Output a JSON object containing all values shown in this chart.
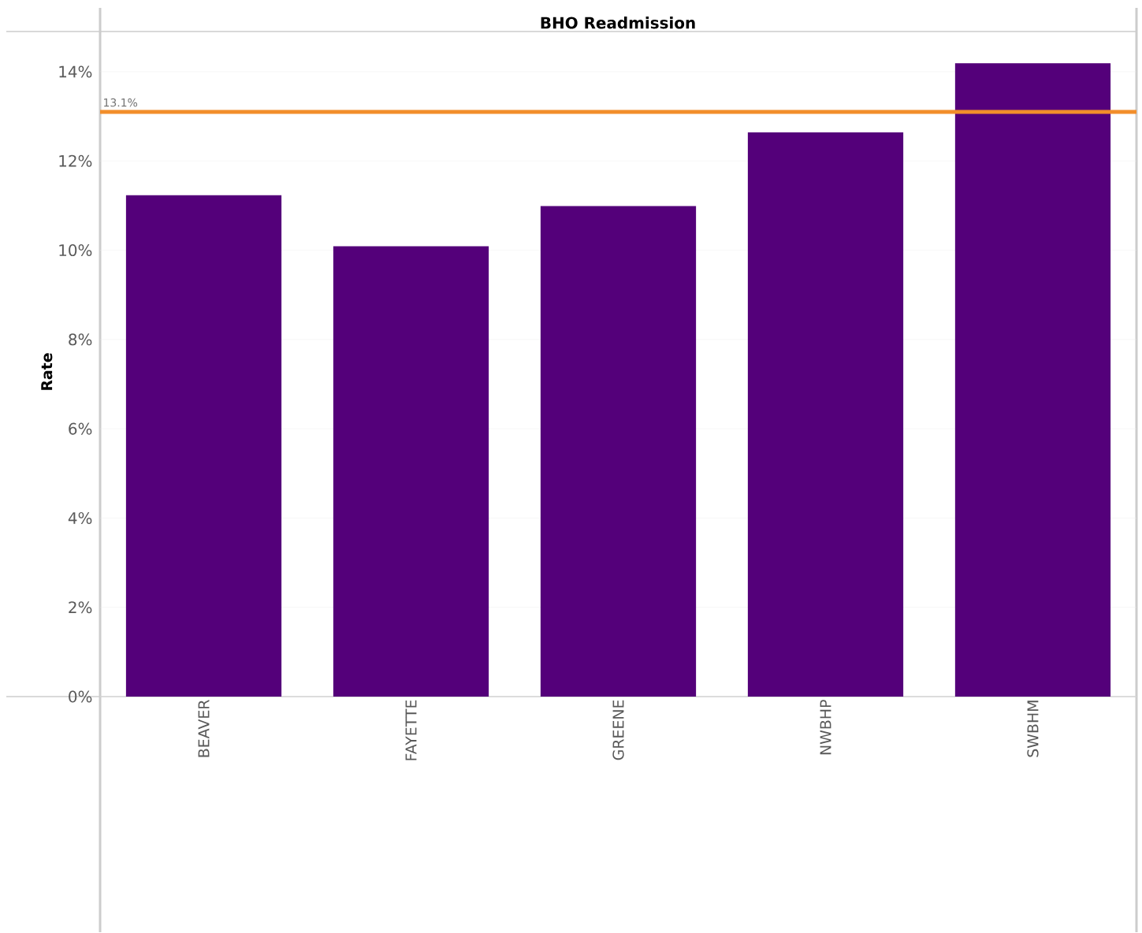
{
  "chart_data": {
    "type": "bar",
    "title": "BHO Readmission",
    "ylabel": "Rate",
    "categories": [
      "BEAVER",
      "FAYETTE",
      "GREENE",
      "NWBHP",
      "SWBHM"
    ],
    "values": [
      11.23,
      10.09,
      10.99,
      12.64,
      14.19
    ],
    "color": "#54007a",
    "ylim": [
      0,
      14.9
    ],
    "yticks": [
      {
        "value": 0,
        "label": "0%"
      },
      {
        "value": 2,
        "label": "2%"
      },
      {
        "value": 4,
        "label": "4%"
      },
      {
        "value": 6,
        "label": "6%"
      },
      {
        "value": 8,
        "label": "8%"
      },
      {
        "value": 10,
        "label": "10%"
      },
      {
        "value": 12,
        "label": "12%"
      },
      {
        "value": 14,
        "label": "14%"
      }
    ],
    "grid": "y",
    "ref_lines": [
      {
        "axis": "y",
        "value": 13.1,
        "label": "13.1%",
        "color": "#f28e2b"
      }
    ]
  }
}
